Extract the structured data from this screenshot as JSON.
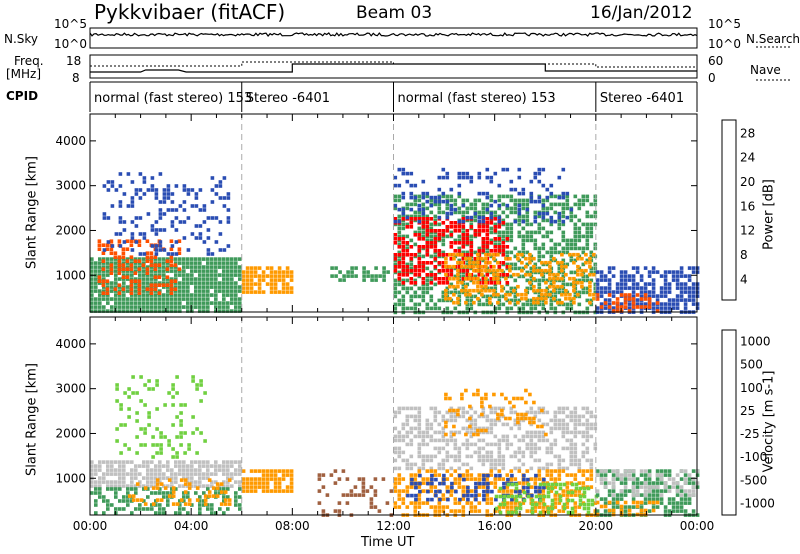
{
  "header": {
    "station": "Pykkvibaer (fitACF)",
    "beam": "Beam 03",
    "date": "16/Jan/2012"
  },
  "status_panels": {
    "nsky_label": "N.Sky",
    "nsearch_label": "N.Search",
    "freq_label_line1": "Freq.",
    "freq_label_line2": "[MHz]",
    "nave_label": "Nave",
    "cpid_label": "CPID",
    "noise_ticks": [
      "10^5",
      "10^0"
    ],
    "freq_ticks": [
      "18",
      "8"
    ],
    "nave_ticks": [
      "60",
      "0"
    ],
    "modes": [
      {
        "name": "normal (fast stereo) 153",
        "start": 0,
        "end": 6
      },
      {
        "name": "Stereo -6401",
        "start": 6,
        "end": 12
      },
      {
        "name": "normal (fast stereo) 153",
        "start": 12,
        "end": 20
      },
      {
        "name": "Stereo -6401",
        "start": 20,
        "end": 24
      }
    ]
  },
  "chart_data": [
    {
      "type": "heatmap",
      "panel": "power",
      "xlabel": "",
      "ylabel": "Slant Range [km]",
      "xlim": [
        0,
        24
      ],
      "ylim": [
        180,
        4600
      ],
      "yticks": [
        "4000",
        "3000",
        "2000",
        "1000"
      ],
      "colorbar_label": "Power [dB]",
      "colorbar_ticks": [
        "28",
        "24",
        "20",
        "16",
        "12",
        "8",
        "4"
      ],
      "colorbar_colors": [
        "#0000ff",
        "#2a4db3",
        "#3f9a5a",
        "#7fd03a",
        "#f0e000",
        "#ff9a00",
        "#ff5000",
        "#ff0000"
      ],
      "regions": [
        {
          "t0": 0.0,
          "t1": 6.0,
          "r0": 200,
          "r1": 1400,
          "color": "#3f9a5a",
          "density": 0.9
        },
        {
          "t0": 0.3,
          "t1": 3.5,
          "r0": 600,
          "r1": 1800,
          "color": "#ff5000",
          "density": 0.45
        },
        {
          "t0": 0.5,
          "t1": 5.5,
          "r0": 1500,
          "r1": 3300,
          "color": "#2a4db3",
          "density": 0.25
        },
        {
          "t0": 6.0,
          "t1": 8.0,
          "r0": 600,
          "r1": 1200,
          "color": "#ff9a00",
          "density": 0.8
        },
        {
          "t0": 9.5,
          "t1": 12.0,
          "r0": 900,
          "r1": 1200,
          "color": "#3f9a5a",
          "density": 0.5
        },
        {
          "t0": 12.0,
          "t1": 20.0,
          "r0": 200,
          "r1": 2800,
          "color": "#3f9a5a",
          "density": 0.55
        },
        {
          "t0": 12.0,
          "t1": 16.5,
          "r0": 800,
          "r1": 2300,
          "color": "#ff0000",
          "density": 0.55
        },
        {
          "t0": 14.0,
          "t1": 20.0,
          "r0": 400,
          "r1": 1500,
          "color": "#ff9a00",
          "density": 0.5
        },
        {
          "t0": 12.0,
          "t1": 19.0,
          "r0": 2200,
          "r1": 3400,
          "color": "#2a4db3",
          "density": 0.25
        },
        {
          "t0": 20.0,
          "t1": 24.0,
          "r0": 200,
          "r1": 1200,
          "color": "#2a4db3",
          "density": 0.7
        },
        {
          "t0": 20.0,
          "t1": 22.5,
          "r0": 200,
          "r1": 600,
          "color": "#ff5000",
          "density": 0.5
        }
      ]
    },
    {
      "type": "heatmap",
      "panel": "velocity",
      "xlabel": "Time UT",
      "ylabel": "Slant Range [km]",
      "xlim": [
        0,
        24
      ],
      "ylim": [
        180,
        4600
      ],
      "xticks": [
        "00:00",
        "04:00",
        "08:00",
        "12:00",
        "16:00",
        "20:00",
        "00:00"
      ],
      "yticks": [
        "4000",
        "3000",
        "2000",
        "1000"
      ],
      "colorbar_label": "Velocity [m s-1]",
      "colorbar_ticks": [
        "1000",
        "500",
        "100",
        "25",
        "-25",
        "-100",
        "-500",
        "-1000"
      ],
      "colorbar_colors": [
        "#ff0000",
        "#ff5000",
        "#ff9a00",
        "#f0c060",
        "#c0c0c0",
        "#70d040",
        "#3f9a5a",
        "#2a4db3",
        "#2a3bb0"
      ],
      "regions": [
        {
          "t0": 0.0,
          "t1": 6.0,
          "r0": 800,
          "r1": 1400,
          "color": "#c0c0c0",
          "density": 0.75
        },
        {
          "t0": 0.0,
          "t1": 6.0,
          "r0": 200,
          "r1": 800,
          "color": "#3f9a5a",
          "density": 0.45
        },
        {
          "t0": 1.0,
          "t1": 4.5,
          "r0": 1500,
          "r1": 3300,
          "color": "#70d040",
          "density": 0.2
        },
        {
          "t0": 1.5,
          "t1": 5.5,
          "r0": 400,
          "r1": 1000,
          "color": "#ff9a00",
          "density": 0.3
        },
        {
          "t0": 6.0,
          "t1": 8.0,
          "r0": 700,
          "r1": 1200,
          "color": "#ff9a00",
          "density": 0.75
        },
        {
          "t0": 9.0,
          "t1": 12.0,
          "r0": 200,
          "r1": 1200,
          "color": "#a06040",
          "density": 0.2
        },
        {
          "t0": 12.0,
          "t1": 20.0,
          "r0": 1200,
          "r1": 2600,
          "color": "#c0c0c0",
          "density": 0.55
        },
        {
          "t0": 12.0,
          "t1": 20.0,
          "r0": 200,
          "r1": 1200,
          "color": "#ff9a00",
          "density": 0.5
        },
        {
          "t0": 12.5,
          "t1": 18.0,
          "r0": 500,
          "r1": 1100,
          "color": "#2a4db3",
          "density": 0.35
        },
        {
          "t0": 16.0,
          "t1": 20.0,
          "r0": 200,
          "r1": 900,
          "color": "#70d040",
          "density": 0.45
        },
        {
          "t0": 14.0,
          "t1": 18.0,
          "r0": 2000,
          "r1": 3000,
          "color": "#ff9a00",
          "density": 0.2
        },
        {
          "t0": 20.0,
          "t1": 24.0,
          "r0": 200,
          "r1": 1200,
          "color": "#3f9a5a",
          "density": 0.55
        },
        {
          "t0": 20.0,
          "t1": 24.0,
          "r0": 600,
          "r1": 1200,
          "color": "#c0c0c0",
          "density": 0.45
        },
        {
          "t0": 20.0,
          "t1": 22.5,
          "r0": 200,
          "r1": 500,
          "color": "#ff9a00",
          "density": 0.45
        }
      ]
    }
  ]
}
